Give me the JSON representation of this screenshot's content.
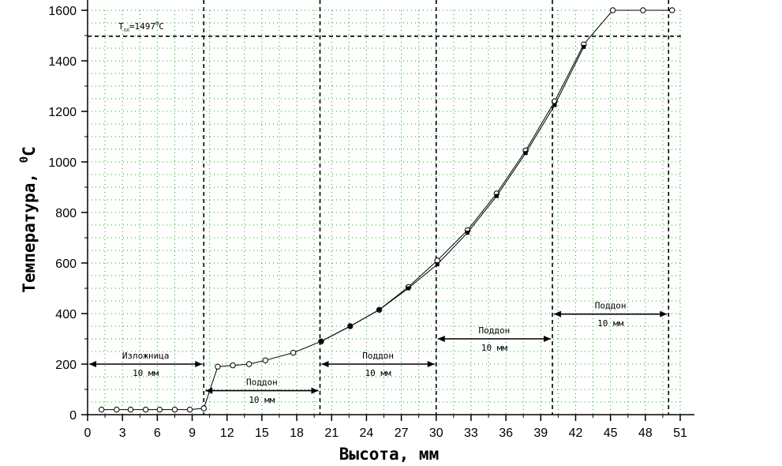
{
  "chart_data": {
    "type": "line",
    "xlabel": "Высота, мм",
    "ylabel": "Температура, ",
    "ylabel_unit": "C",
    "ylabel_degree": "0",
    "xlim": [
      0,
      51
    ],
    "ylim": [
      0,
      1600
    ],
    "xticks": [
      "0",
      "3",
      "6",
      "9",
      "12",
      "15",
      "18",
      "21",
      "24",
      "27",
      "30",
      "33",
      "36",
      "39",
      "42",
      "45",
      "48",
      "51"
    ],
    "yticks": [
      "0",
      "200",
      "400",
      "600",
      "800",
      "1000",
      "1200",
      "1400",
      "1600"
    ],
    "grid": true,
    "hline": {
      "y": 1497,
      "label_prefix": "T",
      "label_sub": "пл",
      "label_mid": "=1497",
      "label_sup": "0",
      "label_unit": "C"
    },
    "vlines": [
      10,
      20,
      30,
      40,
      50
    ],
    "series": [
      {
        "marker": "open-circle",
        "x": [
          1.2,
          2.5,
          3.7,
          5.0,
          6.2,
          7.5,
          8.8,
          10.0,
          11.2,
          12.5,
          13.9,
          15.3,
          17.7,
          20.1,
          22.6,
          25.1,
          27.6,
          30.1,
          32.7,
          35.2,
          37.7,
          40.2,
          42.7,
          45.2,
          47.8,
          50.3
        ],
        "values": [
          20,
          20,
          20,
          20,
          20,
          20,
          20,
          25,
          190,
          195,
          200,
          215,
          245,
          290,
          350,
          415,
          505,
          610,
          730,
          875,
          1045,
          1240,
          1465,
          1600,
          1600,
          1600
        ]
      },
      {
        "marker": "filled-square",
        "x": [
          20.1,
          22.6,
          25.1,
          27.6,
          30.1,
          32.7,
          35.2,
          37.7,
          40.2,
          42.7
        ],
        "values": [
          290,
          350,
          415,
          500,
          595,
          720,
          865,
          1035,
          1225,
          1455
        ]
      }
    ],
    "annotations": [
      {
        "label": "Изложница",
        "dim": "10 мм",
        "x_from": 0,
        "x_to": 10,
        "arrow_y": 200,
        "label_y": 235,
        "dim_y": 165
      },
      {
        "label": "Поддон",
        "dim": "10 мм",
        "x_from": 10,
        "x_to": 20,
        "arrow_y": 95,
        "label_y": 130,
        "dim_y": 60
      },
      {
        "label": "Поддон",
        "dim": "10 мм",
        "x_from": 20,
        "x_to": 30,
        "arrow_y": 200,
        "label_y": 235,
        "dim_y": 165
      },
      {
        "label": "Поддон",
        "dim": "10 мм",
        "x_from": 30,
        "x_to": 40,
        "arrow_y": 300,
        "label_y": 335,
        "dim_y": 265
      },
      {
        "label": "Поддон",
        "dim": "10 мм",
        "x_from": 40,
        "x_to": 50,
        "arrow_y": 398,
        "label_y": 433,
        "dim_y": 363
      }
    ]
  }
}
